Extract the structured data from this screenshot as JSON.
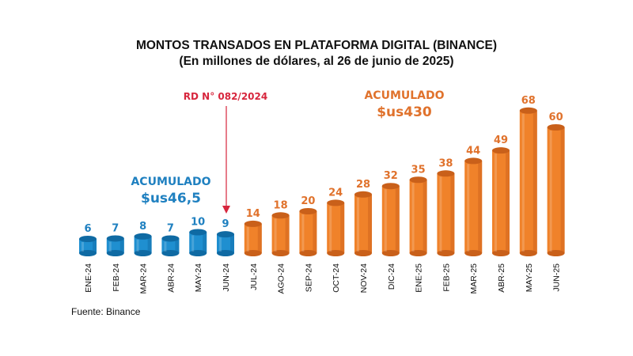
{
  "colors": {
    "blue": "#1f8fd0",
    "blue_dark": "#0f6aa3",
    "orange": "#f0822a",
    "orange_dark": "#c9601a",
    "annot_blue": "#1f80c0",
    "annot_orange": "#e0722c",
    "rd_red": "#d7263d"
  },
  "chart_data": {
    "type": "bar",
    "title": "MONTOS TRANSADOS EN PLATAFORMA DIGITAL (BINANCE)",
    "subtitle": "(En millones de dólares, al 26 de junio de 2025)",
    "categories": [
      "ENE-24",
      "FEB-24",
      "MAR-24",
      "ABR-24",
      "MAY-24",
      "JUN-24",
      "JUL-24",
      "AGO-24",
      "SEP-24",
      "OCT-24",
      "NOV-24",
      "DIC-24",
      "ENE-25",
      "FEB-25",
      "MAR-25",
      "ABR-25",
      "MAY-25",
      "JUN-25"
    ],
    "values": [
      6,
      7,
      8,
      7,
      10,
      9,
      14,
      18,
      20,
      24,
      28,
      32,
      35,
      38,
      44,
      49,
      68,
      60
    ],
    "bar_colors": [
      "blue",
      "blue",
      "blue",
      "blue",
      "blue",
      "blue",
      "orange",
      "orange",
      "orange",
      "orange",
      "orange",
      "orange",
      "orange",
      "orange",
      "orange",
      "orange",
      "orange",
      "orange"
    ],
    "annotations": {
      "cumulative_before": {
        "label": "ACUMULADO",
        "value": "$us46,5"
      },
      "cumulative_after": {
        "label": "ACUMULADO",
        "value": "$us430"
      },
      "regulation_marker": {
        "label": "RD N° 082/2024",
        "category": "JUN-24"
      }
    },
    "source": "Fuente: Binance"
  }
}
